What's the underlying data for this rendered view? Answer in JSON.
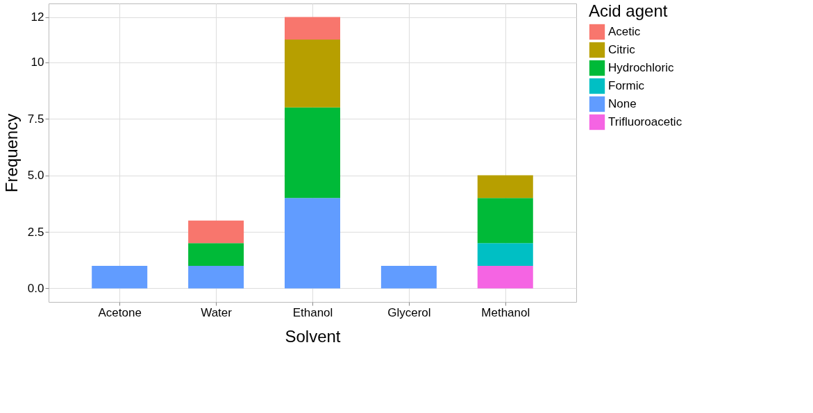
{
  "chart_data": {
    "type": "bar",
    "stacked": true,
    "xlabel": "Solvent",
    "ylabel": "Frequency",
    "legend_title": "Acid agent",
    "legend": "right",
    "grid": true,
    "categories": [
      "Acetone",
      "Water",
      "Ethanol",
      "Glycerol",
      "Methanol"
    ],
    "ylim": [
      -0.6,
      12.6
    ],
    "yticks": [
      {
        "value": 0,
        "label": "0.0"
      },
      {
        "value": 2.5,
        "label": "2.5"
      },
      {
        "value": 5,
        "label": "5.0"
      },
      {
        "value": 7.5,
        "label": "7.5"
      },
      10,
      12
    ],
    "series": [
      {
        "name": "Trifluoroacetic",
        "color": "#f564e3",
        "values": [
          null,
          null,
          null,
          null,
          1
        ]
      },
      {
        "name": "None",
        "color": "#619cff",
        "values": [
          1,
          1,
          4,
          1,
          null
        ]
      },
      {
        "name": "Formic",
        "color": "#00bfc4",
        "values": [
          null,
          null,
          null,
          null,
          1
        ]
      },
      {
        "name": "Hydrochloric",
        "color": "#00ba38",
        "values": [
          null,
          1,
          4,
          null,
          2
        ]
      },
      {
        "name": "Citric",
        "color": "#b79f00",
        "values": [
          null,
          null,
          3,
          null,
          1
        ]
      },
      {
        "name": "Acetic",
        "color": "#f8766d",
        "values": [
          null,
          1,
          1,
          null,
          null
        ]
      }
    ]
  }
}
